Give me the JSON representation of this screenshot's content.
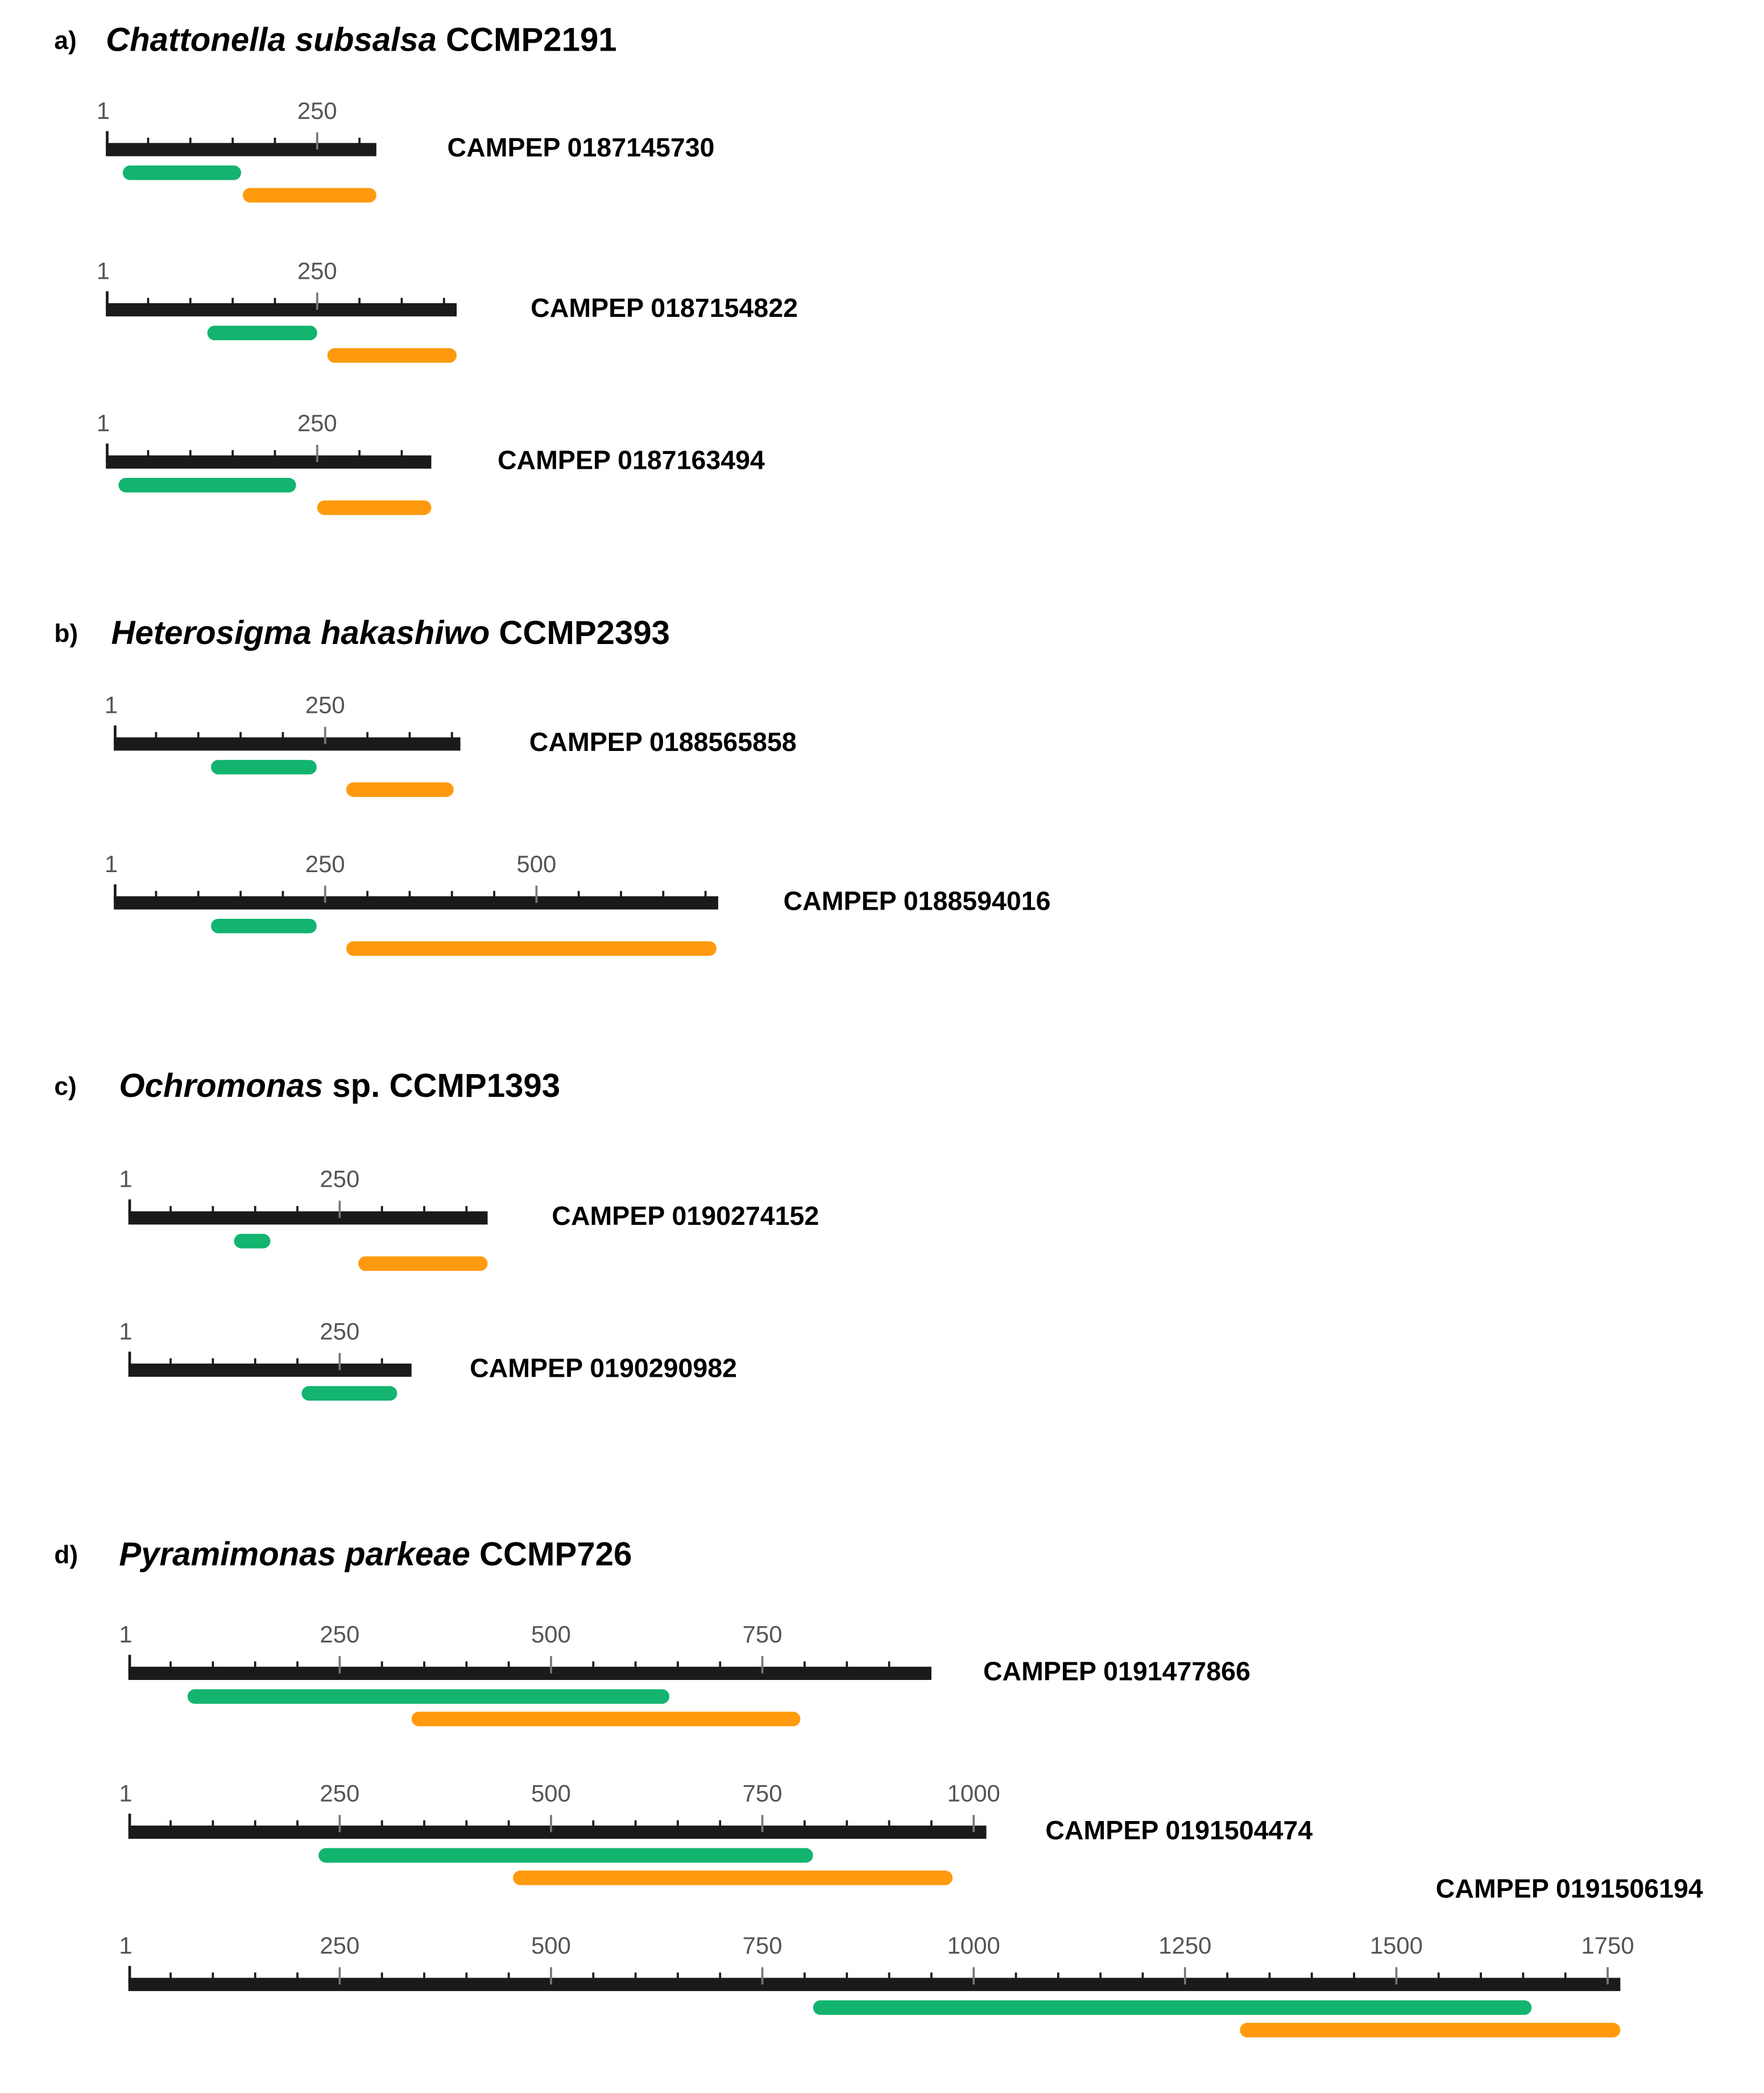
{
  "colors": {
    "axis": "#1a1a1a",
    "domain_green": "#13b46f",
    "domain_orange": "#ff9a0e",
    "tick_text": "#555555"
  },
  "sections": [
    {
      "letter": "a)",
      "species": "Chattonella subsalsa",
      "strain": "CCMP2191",
      "proteins": [
        {
          "id": "CAMPEP 0187145730",
          "length": 320,
          "tick_labels": [
            "1",
            "250"
          ],
          "green": [
            20,
            160
          ],
          "orange": [
            162,
            320
          ]
        },
        {
          "id": "CAMPEP 0187154822",
          "length": 415,
          "tick_labels": [
            "1",
            "250"
          ],
          "green": [
            120,
            250
          ],
          "orange": [
            262,
            415
          ]
        },
        {
          "id": "CAMPEP 0187163494",
          "length": 385,
          "tick_labels": [
            "1",
            "250"
          ],
          "green": [
            15,
            225
          ],
          "orange": [
            250,
            385
          ]
        }
      ]
    },
    {
      "letter": "b)",
      "species": "Heterosigma hakashiwo",
      "strain": "CCMP2393",
      "proteins": [
        {
          "id": "CAMPEP 0188565858",
          "length": 410,
          "tick_labels": [
            "1",
            "250"
          ],
          "green": [
            115,
            240
          ],
          "orange": [
            275,
            402
          ]
        },
        {
          "id": "CAMPEP 0188594016",
          "length": 715,
          "tick_labels": [
            "1",
            "250",
            "500"
          ],
          "green": [
            115,
            240
          ],
          "orange": [
            275,
            713
          ]
        }
      ]
    },
    {
      "letter": "c)",
      "species": "Ochromonas",
      "species_suffix": "sp.",
      "strain": "CCMP1393",
      "proteins": [
        {
          "id": "CAMPEP 0190274152",
          "length": 425,
          "tick_labels": [
            "1",
            "250"
          ],
          "green": [
            125,
            168
          ],
          "orange": [
            272,
            425
          ]
        },
        {
          "id": "CAMPEP 0190290982",
          "length": 335,
          "tick_labels": [
            "1",
            "250"
          ],
          "green": [
            205,
            318
          ],
          "orange": null
        }
      ]
    },
    {
      "letter": "d)",
      "species": "Pyramimonas parkeae",
      "strain": "CCMP726",
      "proteins": [
        {
          "id": "CAMPEP 0191477866",
          "length": 950,
          "tick_labels": [
            "1",
            "250",
            "500",
            "750"
          ],
          "green": [
            70,
            640
          ],
          "orange": [
            335,
            795
          ]
        },
        {
          "id": "CAMPEP 0191504474",
          "length": 1015,
          "tick_labels": [
            "1",
            "250",
            "500",
            "750",
            "1000"
          ],
          "green": [
            225,
            810
          ],
          "orange": [
            455,
            975
          ]
        },
        {
          "id": "CAMPEP 0191506194",
          "length": 1765,
          "tick_labels": [
            "1",
            "250",
            "500",
            "750",
            "1000",
            "1250",
            "1500",
            "1750"
          ],
          "green": [
            810,
            1660
          ],
          "orange": [
            1315,
            1765
          ]
        }
      ]
    }
  ]
}
